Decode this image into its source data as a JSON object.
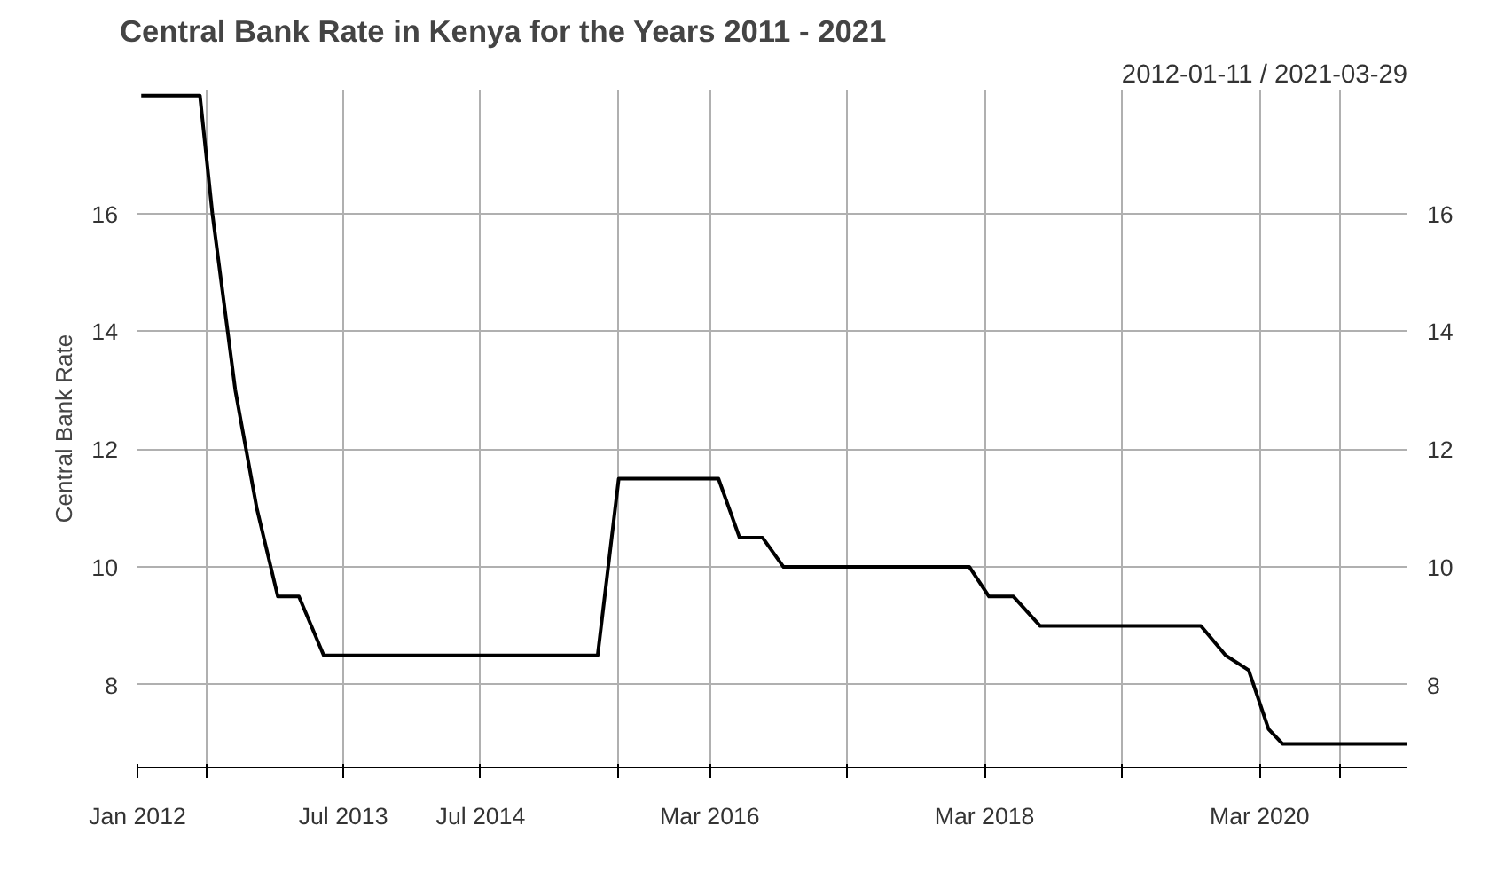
{
  "chart_data": {
    "type": "line",
    "title": "Central Bank Rate in Kenya for the Years 2011 - 2021",
    "subtitle": "2012-01-11 / 2021-03-29",
    "ylabel": "Central Bank Rate",
    "x": [
      "2012-01-11",
      "2012-06-15",
      "2012-07-18",
      "2012-09-17",
      "2012-11-13",
      "2013-01-08",
      "2013-03-05",
      "2013-05-10",
      "2015-05-08",
      "2015-07-03",
      "2016-03-24",
      "2016-05-19",
      "2016-07-19",
      "2016-09-13",
      "2018-01-20",
      "2018-03-13",
      "2018-05-17",
      "2018-07-27",
      "2019-09-27",
      "2019-12-02",
      "2020-02-01",
      "2020-03-25",
      "2020-05-01",
      "2021-03-29"
    ],
    "series": [
      {
        "color": "#000000",
        "values": [
          18,
          18,
          16,
          13,
          11,
          9.5,
          9.5,
          8.5,
          8.5,
          11.5,
          11.5,
          10.5,
          10.5,
          10,
          10,
          9.5,
          9.5,
          9,
          9,
          8.5,
          8.25,
          7.25,
          7,
          7
        ]
      }
    ],
    "xlim": [
      "2012-01-01",
      "2021-03-29"
    ],
    "xticks": [
      {
        "value": "2012-01-01",
        "label": "Jan 2012"
      },
      {
        "value": "2012-07-01",
        "label": null
      },
      {
        "value": "2013-07-01",
        "label": "Jul 2013"
      },
      {
        "value": "2014-07-01",
        "label": "Jul 2014"
      },
      {
        "value": "2015-07-01",
        "label": null
      },
      {
        "value": "2016-03-01",
        "label": "Mar 2016"
      },
      {
        "value": "2017-03-01",
        "label": null
      },
      {
        "value": "2018-03-01",
        "label": "Mar 2018"
      },
      {
        "value": "2019-03-01",
        "label": null
      },
      {
        "value": "2020-03-01",
        "label": "Mar 2020"
      },
      {
        "value": "2020-10-01",
        "label": null
      }
    ],
    "ylim": [
      6.6,
      18.1
    ],
    "yticks": [
      8,
      10,
      12,
      14,
      16
    ],
    "y2lim": [
      6.6,
      18.1
    ],
    "y2ticks": [
      8,
      10,
      12,
      14,
      16
    ],
    "grid": true,
    "marker": "none",
    "line_style": "solid"
  }
}
